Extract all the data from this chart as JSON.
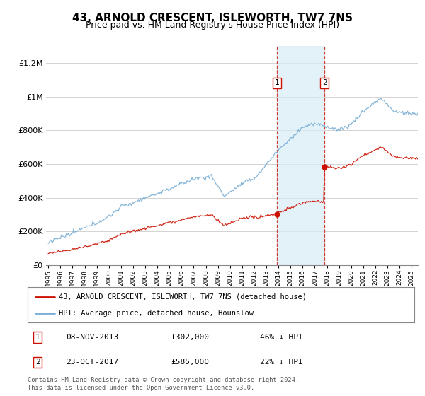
{
  "title": "43, ARNOLD CRESCENT, ISLEWORTH, TW7 7NS",
  "subtitle": "Price paid vs. HM Land Registry's House Price Index (HPI)",
  "title_fontsize": 11,
  "subtitle_fontsize": 9,
  "ylabel_ticks": [
    "£0",
    "£200K",
    "£400K",
    "£600K",
    "£800K",
    "£1M",
    "£1.2M"
  ],
  "ytick_values": [
    0,
    200000,
    400000,
    600000,
    800000,
    1000000,
    1200000
  ],
  "ylim": [
    0,
    1300000
  ],
  "xlim_start": 1994.8,
  "xlim_end": 2025.5,
  "hpi_color": "#7aaed4",
  "price_color": "#cc1100",
  "sale1_x": 2013.86,
  "sale1_y": 302000,
  "sale1_label": "1",
  "sale1_date": "08-NOV-2013",
  "sale1_price": "£302,000",
  "sale1_pct": "46% ↓ HPI",
  "sale2_x": 2017.81,
  "sale2_y": 585000,
  "sale2_label": "2",
  "sale2_date": "23-OCT-2017",
  "sale2_price": "£585,000",
  "sale2_pct": "22% ↓ HPI",
  "legend_line1": "43, ARNOLD CRESCENT, ISLEWORTH, TW7 7NS (detached house)",
  "legend_line2": "HPI: Average price, detached house, Hounslow",
  "footer": "Contains HM Land Registry data © Crown copyright and database right 2024.\nThis data is licensed under the Open Government Licence v3.0."
}
